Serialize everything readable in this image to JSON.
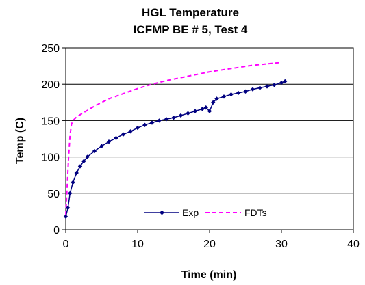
{
  "chart_data": {
    "type": "line",
    "title": "HGL Temperature",
    "subtitle": "ICFMP BE # 5, Test 4",
    "xlabel": "Time (min)",
    "ylabel": "Temp (C)",
    "xlim": [
      0,
      40
    ],
    "ylim": [
      0,
      250
    ],
    "xticks": [
      0,
      10,
      20,
      30,
      40
    ],
    "yticks": [
      0,
      50,
      100,
      150,
      200,
      250
    ],
    "grid": "horizontal",
    "legend": "bottom-center",
    "series": [
      {
        "name": "Exp",
        "color": "#000080",
        "style": "solid-diamond",
        "x": [
          0,
          0.3,
          0.6,
          1,
          1.5,
          2,
          2.5,
          3,
          4,
          5,
          6,
          7,
          8,
          9,
          10,
          11,
          12,
          13,
          14,
          15,
          16,
          17,
          18,
          19,
          19.5,
          20,
          20.5,
          21,
          22,
          23,
          24,
          25,
          26,
          27,
          28,
          29,
          30,
          30.5
        ],
        "y": [
          18,
          30,
          50,
          65,
          78,
          87,
          94,
          100,
          108,
          115,
          121,
          126,
          131,
          135,
          140,
          144,
          147,
          150,
          152,
          154,
          157,
          160,
          163,
          166,
          168,
          163,
          175,
          180,
          183,
          186,
          188,
          190,
          193,
          195,
          197,
          199,
          202,
          204
        ]
      },
      {
        "name": "FDTs",
        "color": "#ff00ff",
        "style": "dashed",
        "x": [
          0,
          0.2,
          0.4,
          0.6,
          0.8,
          1,
          1.5,
          2,
          3,
          4,
          5,
          6,
          8,
          10,
          12,
          14,
          16,
          18,
          20,
          22,
          24,
          26,
          28,
          30
        ],
        "y": [
          20,
          60,
          100,
          130,
          145,
          150,
          155,
          158,
          164,
          170,
          175,
          180,
          187,
          194,
          200,
          205,
          209,
          213,
          217,
          220,
          223,
          226,
          228,
          230
        ]
      }
    ]
  }
}
